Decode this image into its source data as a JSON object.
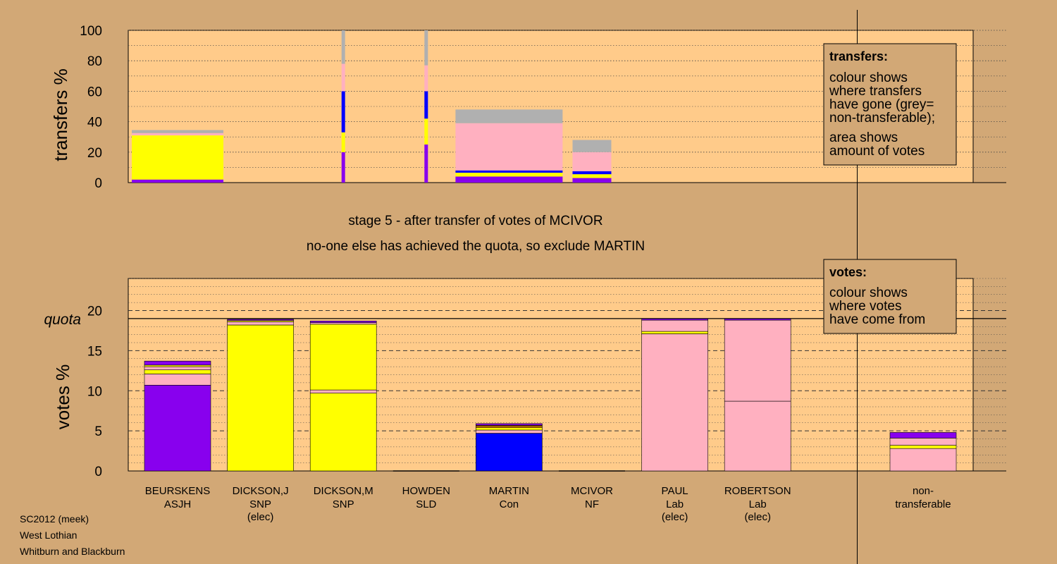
{
  "chart_data": {
    "type": "bar",
    "stage_text": [
      "stage 5 - after transfer of votes of MCIVOR",
      "no-one else has achieved the quota, so exclude MARTIN"
    ],
    "colors": {
      "ASJH": "#8800ee",
      "SNP": "#ffff00",
      "SLD": "#ff9900",
      "Con": "#0000ff",
      "NF": "#7a4a00",
      "Lab": "#ffb0c0",
      "non-transferable": "#b0b0b0"
    },
    "candidates": [
      {
        "name": "BEURSKENS",
        "party": "ASJH",
        "note": "",
        "votes": [
          {
            "source": "ASJH",
            "value": 10.7
          },
          {
            "source": "Lab",
            "value": 1.4
          },
          {
            "source": "SNP",
            "value": 0.5
          },
          {
            "source": "Lab",
            "value": 0.4
          },
          {
            "source": "SNP",
            "value": 0.2
          },
          {
            "source": "ASJH",
            "value": 0.5
          }
        ],
        "transfers": [
          {
            "to": "ASJH",
            "value": 2
          },
          {
            "to": "SNP",
            "value": 29
          },
          {
            "to": "Lab",
            "value": 1.5
          },
          {
            "to": "non-transferable",
            "value": 2
          }
        ]
      },
      {
        "name": "DICKSON,J",
        "party": "SNP",
        "note": "(elec)",
        "votes": [
          {
            "source": "SNP",
            "value": 18.2
          },
          {
            "source": "Lab",
            "value": 0.4
          },
          {
            "source": "SNP",
            "value": 0.15
          },
          {
            "source": "ASJH",
            "value": 0.15
          }
        ],
        "transfers": []
      },
      {
        "name": "DICKSON,M",
        "party": "SNP",
        "note": "",
        "votes": [
          {
            "source": "SNP",
            "value": 9.7
          },
          {
            "source": "Lab",
            "value": 0.4
          },
          {
            "source": "SNP",
            "value": 8.2
          },
          {
            "source": "Lab",
            "value": 0.2
          },
          {
            "source": "ASJH",
            "value": 0.2
          }
        ],
        "transfers": [
          {
            "to": "ASJH",
            "value": 20
          },
          {
            "to": "SNP",
            "value": 13
          },
          {
            "to": "Con",
            "value": 27
          },
          {
            "to": "Lab",
            "value": 18
          },
          {
            "to": "non-transferable",
            "value": 22
          }
        ]
      },
      {
        "name": "HOWDEN",
        "party": "SLD",
        "note": "",
        "votes": [],
        "transfers": [
          {
            "to": "ASJH",
            "value": 25
          },
          {
            "to": "SNP",
            "value": 17
          },
          {
            "to": "Con",
            "value": 18
          },
          {
            "to": "Lab",
            "value": 17
          },
          {
            "to": "non-transferable",
            "value": 23
          }
        ]
      },
      {
        "name": "MARTIN",
        "party": "Con",
        "note": "",
        "votes": [
          {
            "source": "Con",
            "value": 4.7
          },
          {
            "source": "Lab",
            "value": 0.4
          },
          {
            "source": "SNP",
            "value": 0.3
          },
          {
            "source": "SLD",
            "value": 0.2
          },
          {
            "source": "NF",
            "value": 0.1
          },
          {
            "source": "ASJH",
            "value": 0.2
          }
        ],
        "transfers": [
          {
            "to": "ASJH",
            "value": 4
          },
          {
            "to": "SNP",
            "value": 2.5
          },
          {
            "to": "Con",
            "value": 1.5
          },
          {
            "to": "Lab",
            "value": 31
          },
          {
            "to": "non-transferable",
            "value": 9
          }
        ]
      },
      {
        "name": "MCIVOR",
        "party": "NF",
        "note": "",
        "votes": [],
        "transfers": [
          {
            "to": "ASJH",
            "value": 3
          },
          {
            "to": "SNP",
            "value": 2.5
          },
          {
            "to": "Con",
            "value": 2
          },
          {
            "to": "Lab",
            "value": 12.5
          },
          {
            "to": "non-transferable",
            "value": 8
          }
        ]
      },
      {
        "name": "PAUL",
        "party": "Lab",
        "note": "(elec)",
        "votes": [
          {
            "source": "Lab",
            "value": 17.1
          },
          {
            "source": "SNP",
            "value": 0.3
          },
          {
            "source": "Lab",
            "value": 1.4
          },
          {
            "source": "ASJH",
            "value": 0.2
          }
        ],
        "transfers": []
      },
      {
        "name": "ROBERTSON",
        "party": "Lab",
        "note": "(elec)",
        "votes": [
          {
            "source": "Lab",
            "value": 8.7
          },
          {
            "source": "Lab",
            "value": 10.1
          },
          {
            "source": "ASJH",
            "value": 0.2
          }
        ],
        "transfers": []
      }
    ],
    "non_transferable": {
      "label_lines": [
        "non-",
        "transferable"
      ],
      "votes": [
        {
          "source": "Lab",
          "value": 2.8
        },
        {
          "source": "SNP",
          "value": 0.4
        },
        {
          "source": "Lab",
          "value": 0.9
        },
        {
          "source": "ASJH",
          "value": 0.7
        }
      ]
    },
    "transfers_chart": {
      "ylabel": "transfers %",
      "ylim": [
        0,
        100
      ],
      "ticks": [
        0,
        20,
        40,
        60,
        80,
        100
      ]
    },
    "votes_chart": {
      "ylabel": "votes %",
      "ylim": [
        0,
        24
      ],
      "ticks": [
        0,
        5,
        10,
        15,
        20
      ],
      "quota": 19.0,
      "quota_label": "quota"
    },
    "legend_transfers": {
      "title": "transfers:",
      "lines": [
        "colour shows",
        "where transfers",
        "have gone (grey=",
        "non-transferable);",
        "area shows",
        "amount of votes"
      ]
    },
    "legend_votes": {
      "title": "votes:",
      "lines": [
        "colour shows",
        "where votes",
        "have come from"
      ]
    },
    "footer": [
      "SC2012 (meek)",
      "West Lothian",
      "Whitburn and Blackburn"
    ]
  }
}
